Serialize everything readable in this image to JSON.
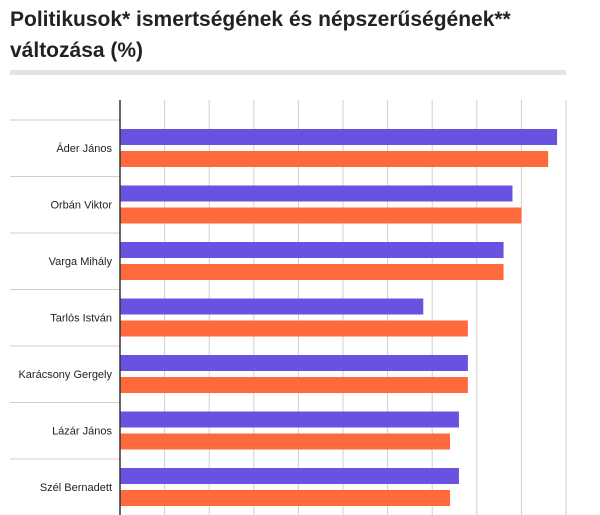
{
  "chart_data": {
    "type": "bar",
    "orientation": "horizontal",
    "title": "Politikusok* ismertségének és népszerűségének** változása (%)",
    "categories": [
      "Áder János",
      "Orbán Viktor",
      "Varga Mihály",
      "Tarlós István",
      "Karácsony Gergely",
      "Lázár János",
      "Szél Bernadett"
    ],
    "series": [
      {
        "values": [
          98,
          88,
          86,
          68,
          78,
          76,
          76
        ],
        "color": "#6a52e0"
      },
      {
        "values": [
          96,
          90,
          86,
          78,
          78,
          74,
          74
        ],
        "color": "#ff6a3d"
      }
    ],
    "xlim": [
      0,
      100
    ],
    "grid": true,
    "legend": "none"
  }
}
